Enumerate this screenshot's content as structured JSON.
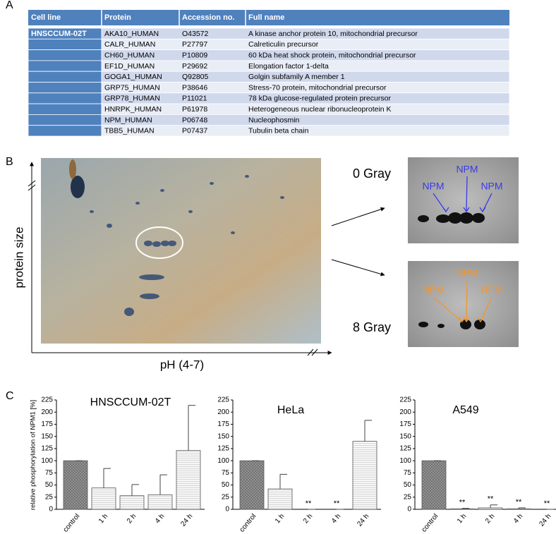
{
  "panel_labels": [
    "A",
    "B",
    "C"
  ],
  "table": {
    "columns": [
      "Cell line",
      "Protein",
      "Accession no.",
      "Full name"
    ],
    "cell_line": "HNSCCUM-02T",
    "rows": [
      [
        "AKA10_HUMAN",
        "O43572",
        "A kinase anchor protein 10, mitochondrial precursor"
      ],
      [
        "CALR_HUMAN",
        "P27797",
        "Calreticulin precursor"
      ],
      [
        "CH60_HUMAN",
        "P10809",
        "60 kDa heat shock protein, mitochondrial precursor"
      ],
      [
        "EF1D_HUMAN",
        "P29692",
        "Elongation factor 1-delta"
      ],
      [
        "GOGA1_HUMAN",
        "Q92805",
        "Golgin subfamily A member 1"
      ],
      [
        "GRP75_HUMAN",
        "P38646",
        "Stress-70 protein, mitochondrial precursor"
      ],
      [
        "GRP78_HUMAN",
        "P11021",
        "78 kDa glucose-regulated protein precursor"
      ],
      [
        "HNRPK_HUMAN",
        "P61978",
        "Heterogeneous nuclear ribonucleoprotein K"
      ],
      [
        "NPM_HUMAN",
        "P06748",
        "Nucleophosmin"
      ],
      [
        "TBB5_HUMAN",
        "P07437",
        "Tubulin beta chain"
      ]
    ]
  },
  "gel": {
    "x_label": "pH (4-7)",
    "y_label": "protein size",
    "insets": [
      {
        "label": "0 Gray",
        "annotations": [
          "NPM",
          "NPM",
          "NPM"
        ],
        "color": "#3a3ae8"
      },
      {
        "label": "8 Gray",
        "annotations": [
          "NPM",
          "NPM",
          "NPM"
        ],
        "color": "#f5962a"
      }
    ]
  },
  "chart_data": [
    {
      "type": "bar",
      "title": "HNSCCUM-02T",
      "y_label": "relative phosphorylation of NPM1 [%]",
      "categories": [
        "control",
        "1 h",
        "2 h",
        "4 h",
        "24 h"
      ],
      "values": [
        100,
        44,
        28,
        30,
        121
      ],
      "errors": [
        0,
        40,
        23,
        41,
        93
      ],
      "significance": [
        null,
        null,
        null,
        null,
        null
      ],
      "ylim": [
        0,
        225
      ],
      "yticks": [
        0,
        25,
        50,
        75,
        100,
        125,
        150,
        175,
        200,
        225
      ]
    },
    {
      "type": "bar",
      "title": "HeLa",
      "categories": [
        "control",
        "1 h",
        "2 h",
        "4 h",
        "24 h"
      ],
      "values": [
        100,
        42,
        0,
        0,
        140
      ],
      "errors": [
        0,
        30,
        0,
        0,
        43
      ],
      "significance": [
        null,
        null,
        "**",
        "**",
        null
      ],
      "ylim": [
        0,
        225
      ],
      "yticks": [
        0,
        25,
        50,
        75,
        100,
        125,
        150,
        175,
        200,
        225
      ]
    },
    {
      "type": "bar",
      "title": "A549",
      "categories": [
        "control",
        "1 h",
        "2 h",
        "4 h",
        "24 h"
      ],
      "values": [
        100,
        1,
        3,
        1,
        0
      ],
      "errors": [
        0,
        1,
        6,
        2,
        0
      ],
      "significance": [
        null,
        "**",
        "**",
        "**",
        "**"
      ],
      "ylim": [
        0,
        225
      ],
      "yticks": [
        0,
        25,
        50,
        75,
        100,
        125,
        150,
        175,
        200,
        225
      ]
    }
  ]
}
